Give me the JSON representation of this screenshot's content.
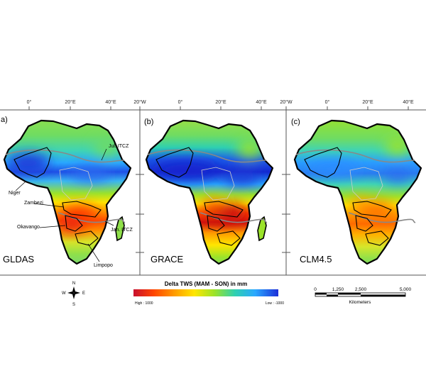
{
  "panels": [
    {
      "letter": "a)",
      "model": "GLDAS",
      "top_ticks": [
        "0°",
        "20°E",
        "40°E"
      ],
      "annotations": {
        "jul_itcz": "Jul. ITCZ",
        "niger": "Niger",
        "zambezi": "Zambezi",
        "okavango": "Okavango",
        "jan_itcz": "Jan. ITCZ",
        "limpopo": "Limpopo"
      }
    },
    {
      "letter": "(b)",
      "model": "GRACE",
      "top_ticks": [
        "20°W",
        "0°",
        "20°E",
        "40°E"
      ]
    },
    {
      "letter": "(c)",
      "model": "CLM4.5",
      "top_ticks": [
        "20°W",
        "0°",
        "20°E",
        "40°E"
      ]
    }
  ],
  "north_arrow": {
    "n": "N",
    "s": "S",
    "e": "E",
    "w": "W"
  },
  "legend": {
    "title": "Delta TWS (MAM - SON) in mm",
    "high_label": "High : 1000",
    "low_label": "Low : -1000",
    "colors": [
      "#c8102e",
      "#ff4500",
      "#ff9a00",
      "#ffe600",
      "#9be32a",
      "#2fd0b0",
      "#2aa8ff",
      "#1c2fd8"
    ]
  },
  "scale_bar": {
    "ticks": [
      "0",
      "1,250",
      "2,500",
      "5,000"
    ],
    "unit": "Kilometers"
  }
}
